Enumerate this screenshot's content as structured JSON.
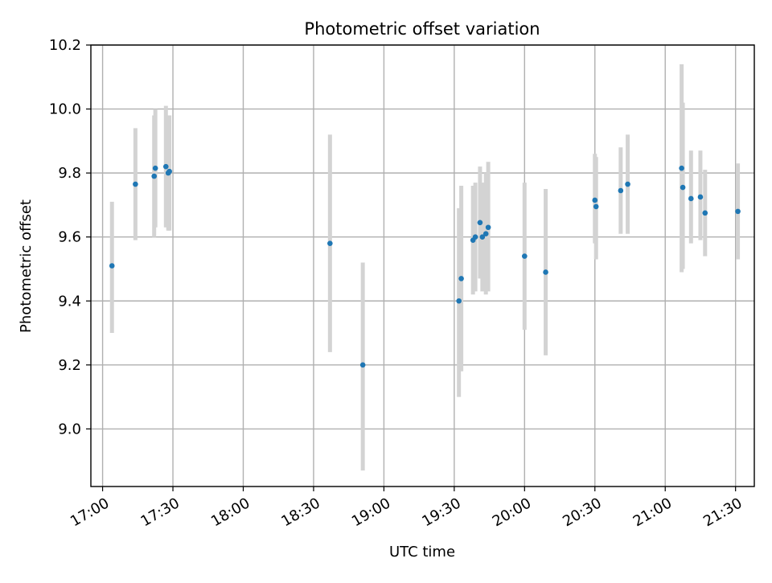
{
  "chart_data": {
    "type": "scatter",
    "title": "Photometric offset variation",
    "xlabel": "UTC time",
    "ylabel": "Photometric offset",
    "xlim": [
      "16:55",
      "21:38"
    ],
    "ylim": [
      8.82,
      10.2
    ],
    "x_ticks": [
      "17:00",
      "17:30",
      "18:00",
      "18:30",
      "19:00",
      "19:30",
      "20:00",
      "20:30",
      "21:00",
      "21:30"
    ],
    "y_ticks": [
      "9.0",
      "9.2",
      "9.4",
      "9.6",
      "9.8",
      "10.0",
      "10.2"
    ],
    "grid": true,
    "point_color": "#1f77b4",
    "errorbar_color": "#d3d3d3",
    "series": [
      {
        "points": [
          {
            "time": "17:04",
            "y": 9.51,
            "ylow": 9.3,
            "yhigh": 9.71
          },
          {
            "time": "17:14",
            "y": 9.765,
            "ylow": 9.59,
            "yhigh": 9.94
          },
          {
            "time": "17:22",
            "y": 9.79,
            "ylow": 9.6,
            "yhigh": 9.98
          },
          {
            "time": "17:22.5",
            "y": 9.815,
            "ylow": 9.63,
            "yhigh": 10.0
          },
          {
            "time": "17:27",
            "y": 9.82,
            "ylow": 9.63,
            "yhigh": 10.01
          },
          {
            "time": "17:28",
            "y": 9.8,
            "ylow": 9.62,
            "yhigh": 9.98
          },
          {
            "time": "17:28.5",
            "y": 9.805,
            "ylow": 9.62,
            "yhigh": 9.98
          },
          {
            "time": "18:37",
            "y": 9.58,
            "ylow": 9.24,
            "yhigh": 9.92
          },
          {
            "time": "18:51",
            "y": 9.2,
            "ylow": 8.87,
            "yhigh": 9.52
          },
          {
            "time": "19:32",
            "y": 9.4,
            "ylow": 9.1,
            "yhigh": 9.69
          },
          {
            "time": "19:33",
            "y": 9.47,
            "ylow": 9.18,
            "yhigh": 9.76
          },
          {
            "time": "19:38",
            "y": 9.59,
            "ylow": 9.42,
            "yhigh": 9.76
          },
          {
            "time": "19:39",
            "y": 9.6,
            "ylow": 9.43,
            "yhigh": 9.77
          },
          {
            "time": "19:41",
            "y": 9.645,
            "ylow": 9.47,
            "yhigh": 9.82
          },
          {
            "time": "19:42",
            "y": 9.6,
            "ylow": 9.43,
            "yhigh": 9.77
          },
          {
            "time": "19:43.5",
            "y": 9.61,
            "ylow": 9.42,
            "yhigh": 9.8
          },
          {
            "time": "19:44.5",
            "y": 9.63,
            "ylow": 9.43,
            "yhigh": 9.835
          },
          {
            "time": "20:00",
            "y": 9.54,
            "ylow": 9.31,
            "yhigh": 9.77
          },
          {
            "time": "20:09",
            "y": 9.49,
            "ylow": 9.23,
            "yhigh": 9.75
          },
          {
            "time": "20:30",
            "y": 9.715,
            "ylow": 9.58,
            "yhigh": 9.86
          },
          {
            "time": "20:30.5",
            "y": 9.695,
            "ylow": 9.53,
            "yhigh": 9.85
          },
          {
            "time": "20:41",
            "y": 9.745,
            "ylow": 9.61,
            "yhigh": 9.88
          },
          {
            "time": "20:44",
            "y": 9.765,
            "ylow": 9.61,
            "yhigh": 9.92
          },
          {
            "time": "21:07",
            "y": 9.815,
            "ylow": 9.49,
            "yhigh": 10.14
          },
          {
            "time": "21:07.5",
            "y": 9.755,
            "ylow": 9.5,
            "yhigh": 10.02
          },
          {
            "time": "21:11",
            "y": 9.72,
            "ylow": 9.58,
            "yhigh": 9.87
          },
          {
            "time": "21:15",
            "y": 9.725,
            "ylow": 9.59,
            "yhigh": 9.87
          },
          {
            "time": "21:17",
            "y": 9.675,
            "ylow": 9.54,
            "yhigh": 9.81
          },
          {
            "time": "21:31",
            "y": 9.68,
            "ylow": 9.53,
            "yhigh": 9.83
          }
        ]
      }
    ]
  }
}
